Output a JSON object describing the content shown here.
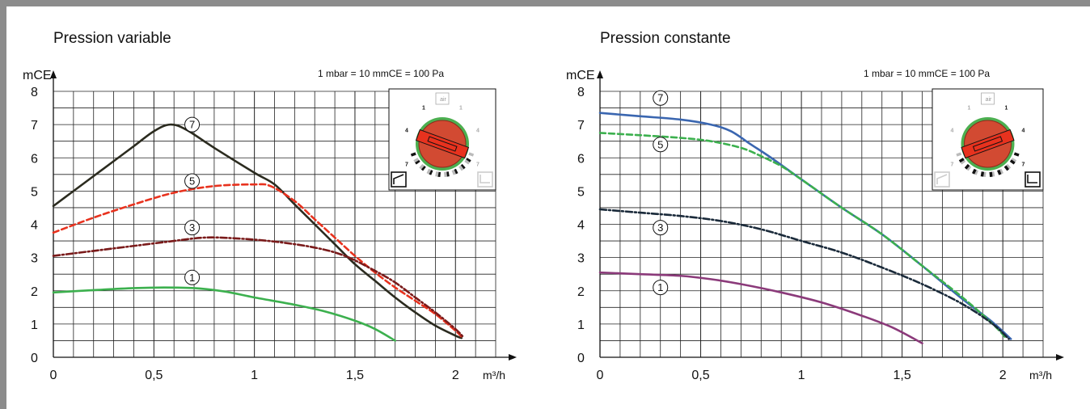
{
  "chart_data": [
    {
      "type": "line",
      "title": "Pression variable",
      "ylabel": "mCE",
      "xlabel": "m³/h",
      "note": "1 mbar = 10 mmCE = 100 Pa",
      "xlim": [
        0,
        2.2
      ],
      "ylim": [
        0,
        8
      ],
      "xticks": [
        "0",
        "0,5",
        "1",
        "1,5",
        "2"
      ],
      "yticks": [
        "0",
        "1",
        "2",
        "3",
        "4",
        "5",
        "6",
        "7",
        "8"
      ],
      "grid": true,
      "series": [
        {
          "name": "7",
          "color": "#2b2b1f",
          "dash": "",
          "label_at": [
            0.69,
            7.0
          ],
          "points": [
            [
              0,
              4.55
            ],
            [
              0.1,
              5.0
            ],
            [
              0.2,
              5.45
            ],
            [
              0.3,
              5.9
            ],
            [
              0.4,
              6.35
            ],
            [
              0.5,
              6.8
            ],
            [
              0.58,
              7.0
            ],
            [
              0.66,
              6.85
            ],
            [
              0.8,
              6.3
            ],
            [
              1.0,
              5.55
            ],
            [
              1.1,
              5.2
            ],
            [
              1.2,
              4.6
            ],
            [
              1.3,
              4.0
            ],
            [
              1.4,
              3.4
            ],
            [
              1.5,
              2.8
            ],
            [
              1.6,
              2.3
            ],
            [
              1.7,
              1.8
            ],
            [
              1.8,
              1.35
            ],
            [
              1.9,
              0.95
            ],
            [
              2.0,
              0.65
            ],
            [
              2.03,
              0.58
            ]
          ]
        },
        {
          "name": "5",
          "color": "#e8321e",
          "dash": "7,4",
          "label_at": [
            0.69,
            5.3
          ],
          "points": [
            [
              0,
              3.75
            ],
            [
              0.2,
              4.2
            ],
            [
              0.4,
              4.6
            ],
            [
              0.6,
              4.95
            ],
            [
              0.8,
              5.15
            ],
            [
              1.0,
              5.2
            ],
            [
              1.08,
              5.15
            ],
            [
              1.2,
              4.7
            ],
            [
              1.3,
              4.15
            ],
            [
              1.4,
              3.6
            ],
            [
              1.5,
              3.05
            ],
            [
              1.6,
              2.55
            ],
            [
              1.7,
              2.1
            ],
            [
              1.8,
              1.7
            ],
            [
              1.9,
              1.3
            ],
            [
              2.0,
              0.8
            ],
            [
              2.03,
              0.62
            ]
          ]
        },
        {
          "name": "3",
          "color": "#7a1a1a",
          "dash": "8,3,2,3",
          "label_at": [
            0.69,
            3.9
          ],
          "points": [
            [
              0,
              3.05
            ],
            [
              0.2,
              3.2
            ],
            [
              0.4,
              3.35
            ],
            [
              0.6,
              3.5
            ],
            [
              0.75,
              3.6
            ],
            [
              0.9,
              3.58
            ],
            [
              1.1,
              3.48
            ],
            [
              1.3,
              3.3
            ],
            [
              1.45,
              3.05
            ],
            [
              1.6,
              2.6
            ],
            [
              1.7,
              2.25
            ],
            [
              1.8,
              1.8
            ],
            [
              1.9,
              1.35
            ],
            [
              2.0,
              0.85
            ],
            [
              2.04,
              0.6
            ]
          ]
        },
        {
          "name": "1",
          "color": "#3cb04e",
          "dash": "",
          "label_at": [
            0.69,
            2.4
          ],
          "points": [
            [
              0,
              1.95
            ],
            [
              0.2,
              2.02
            ],
            [
              0.4,
              2.08
            ],
            [
              0.55,
              2.1
            ],
            [
              0.7,
              2.08
            ],
            [
              0.85,
              1.98
            ],
            [
              1.0,
              1.8
            ],
            [
              1.2,
              1.58
            ],
            [
              1.35,
              1.38
            ],
            [
              1.5,
              1.1
            ],
            [
              1.6,
              0.85
            ],
            [
              1.7,
              0.5
            ]
          ]
        }
      ]
    },
    {
      "type": "line",
      "title": "Pression constante",
      "ylabel": "mCE",
      "xlabel": "m³/h",
      "note": "1 mbar = 10 mmCE = 100 Pa",
      "xlim": [
        0,
        2.2
      ],
      "ylim": [
        0,
        8
      ],
      "xticks": [
        "0",
        "0,5",
        "1",
        "1,5",
        "2"
      ],
      "yticks": [
        "0",
        "1",
        "2",
        "3",
        "4",
        "5",
        "6",
        "7",
        "8"
      ],
      "grid": true,
      "series": [
        {
          "name": "7",
          "color": "#3a66b0",
          "dash": "",
          "label_at": [
            0.3,
            7.8
          ],
          "points": [
            [
              0,
              7.35
            ],
            [
              0.2,
              7.25
            ],
            [
              0.4,
              7.15
            ],
            [
              0.55,
              7.0
            ],
            [
              0.65,
              6.8
            ],
            [
              0.75,
              6.4
            ],
            [
              0.85,
              6.0
            ],
            [
              1.0,
              5.35
            ],
            [
              1.2,
              4.5
            ],
            [
              1.4,
              3.7
            ],
            [
              1.6,
              2.75
            ],
            [
              1.8,
              1.75
            ],
            [
              1.95,
              1.05
            ],
            [
              2.04,
              0.55
            ]
          ]
        },
        {
          "name": "5",
          "color": "#3cb04e",
          "dash": "7,4",
          "label_at": [
            0.3,
            6.4
          ],
          "points": [
            [
              0,
              6.75
            ],
            [
              0.2,
              6.68
            ],
            [
              0.4,
              6.6
            ],
            [
              0.55,
              6.5
            ],
            [
              0.7,
              6.3
            ],
            [
              0.8,
              6.05
            ],
            [
              0.9,
              5.75
            ],
            [
              1.0,
              5.35
            ],
            [
              1.2,
              4.5
            ],
            [
              1.4,
              3.7
            ],
            [
              1.6,
              2.75
            ],
            [
              1.8,
              1.8
            ],
            [
              1.95,
              1.0
            ],
            [
              2.02,
              0.55
            ]
          ]
        },
        {
          "name": "3",
          "color": "#1a2a3a",
          "dash": "8,3,2,3",
          "label_at": [
            0.3,
            3.9
          ],
          "points": [
            [
              0,
              4.45
            ],
            [
              0.2,
              4.35
            ],
            [
              0.4,
              4.25
            ],
            [
              0.6,
              4.1
            ],
            [
              0.8,
              3.85
            ],
            [
              1.0,
              3.5
            ],
            [
              1.2,
              3.15
            ],
            [
              1.4,
              2.7
            ],
            [
              1.6,
              2.2
            ],
            [
              1.8,
              1.6
            ],
            [
              1.95,
              1.0
            ],
            [
              2.03,
              0.55
            ]
          ]
        },
        {
          "name": "1",
          "color": "#8b3a7a",
          "dash": "",
          "label_at": [
            0.3,
            2.1
          ],
          "points": [
            [
              0,
              2.55
            ],
            [
              0.2,
              2.5
            ],
            [
              0.4,
              2.45
            ],
            [
              0.55,
              2.35
            ],
            [
              0.7,
              2.2
            ],
            [
              0.9,
              1.95
            ],
            [
              1.1,
              1.65
            ],
            [
              1.3,
              1.25
            ],
            [
              1.45,
              0.9
            ],
            [
              1.6,
              0.42
            ]
          ]
        }
      ]
    }
  ],
  "dials": [
    {
      "labels": [
        "1",
        "4",
        "7",
        "1",
        "4",
        "7"
      ],
      "mode": "variable",
      "air_label": "air"
    },
    {
      "labels": [
        "1",
        "4",
        "7",
        "1",
        "4",
        "7"
      ],
      "mode": "constant",
      "air_label": "air"
    }
  ]
}
